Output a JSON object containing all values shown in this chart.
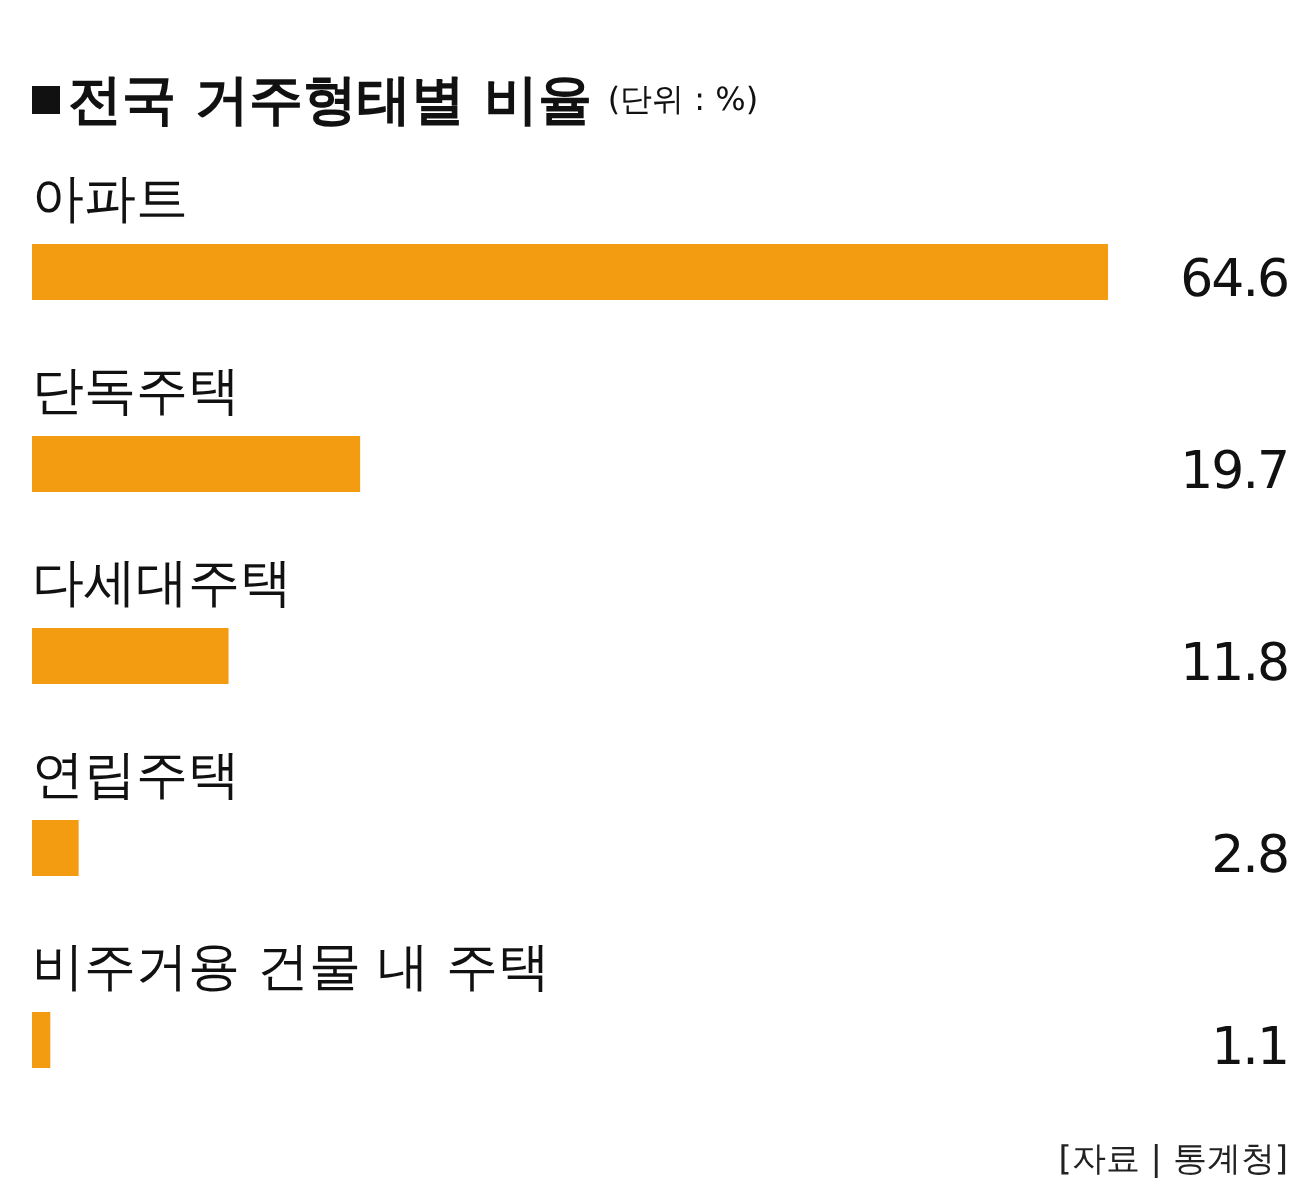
{
  "chart_data": {
    "type": "bar",
    "orientation": "horizontal",
    "title": "전국 거주형태별 비율",
    "subtitle": "(단위 : %)",
    "categories": [
      "아파트",
      "단독주택",
      "다세대주택",
      "연립주택",
      "비주거용 건물 내 주택"
    ],
    "values": [
      64.6,
      19.7,
      11.8,
      2.8,
      1.1
    ],
    "color": "#f39c12",
    "data_labels": true,
    "annotations": [
      "[자료 | 통계청]"
    ]
  }
}
